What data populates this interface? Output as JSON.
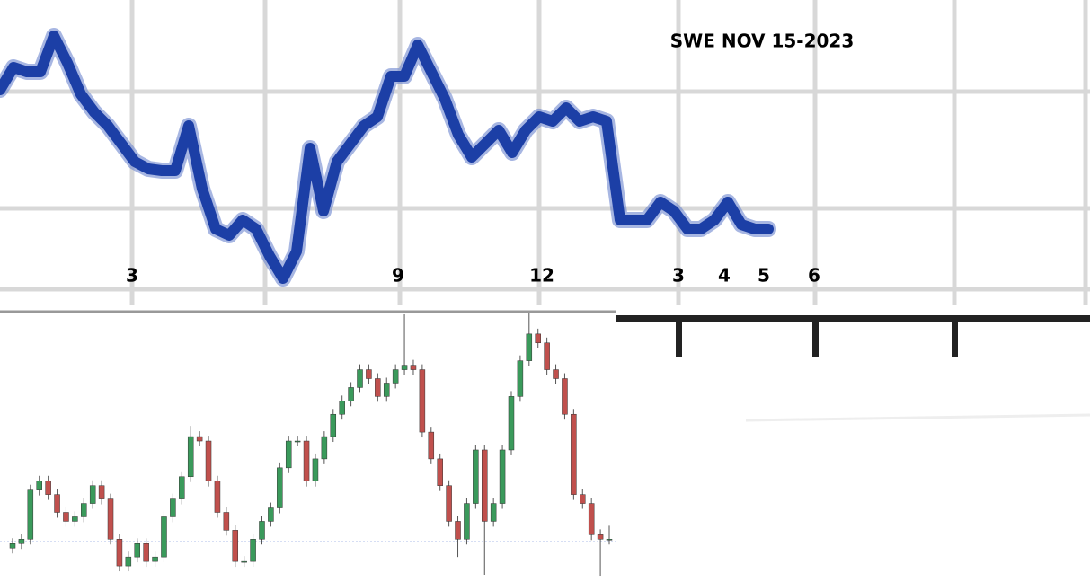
{
  "chart_data": [
    {
      "type": "line",
      "title": "SWE NOV 15-2023",
      "annotations": [
        "3",
        "9",
        "12",
        "3",
        "4",
        "5",
        "6"
      ],
      "color": "#1c3fa6",
      "values": [
        240,
        265,
        260,
        260,
        300,
        270,
        235,
        215,
        200,
        180,
        160,
        152,
        150,
        150,
        200,
        130,
        85,
        78,
        95,
        85,
        55,
        30,
        60,
        175,
        105,
        160,
        180,
        200,
        210,
        255,
        255,
        290,
        260,
        230,
        190,
        165,
        180,
        195,
        170,
        195,
        210,
        205,
        220,
        205,
        210,
        205,
        95,
        95,
        95,
        115,
        105,
        85,
        85,
        95,
        115,
        90,
        85,
        85
      ],
      "ylim": [
        0,
        340
      ]
    },
    {
      "type": "candlestick",
      "color_up": "#3a9a5b",
      "color_down": "#c0504d",
      "open": [
        35,
        40,
        45,
        100,
        110,
        95,
        75,
        65,
        70,
        85,
        105,
        90,
        45,
        15,
        25,
        40,
        20,
        25,
        70,
        90,
        115,
        160,
        155,
        110,
        75,
        55,
        20,
        20,
        45,
        65,
        80,
        125,
        155,
        155,
        110,
        135,
        160,
        185,
        200,
        215,
        235,
        225,
        205,
        220,
        235,
        240,
        235,
        165,
        135,
        105,
        65,
        45,
        85,
        145,
        65,
        85,
        145,
        205,
        245,
        275,
        265,
        235,
        225,
        185,
        95,
        85,
        50,
        45
      ],
      "high": [
        46,
        51,
        106,
        116,
        116,
        101,
        81,
        76,
        91,
        111,
        111,
        96,
        51,
        31,
        46,
        46,
        31,
        76,
        96,
        121,
        172,
        166,
        161,
        116,
        81,
        61,
        26,
        51,
        71,
        86,
        131,
        161,
        161,
        161,
        141,
        166,
        191,
        206,
        221,
        241,
        241,
        231,
        226,
        241,
        297,
        246,
        241,
        171,
        141,
        111,
        71,
        91,
        151,
        151,
        91,
        151,
        211,
        251,
        298,
        281,
        271,
        241,
        231,
        191,
        101,
        91,
        56,
        60
      ],
      "low": [
        29,
        34,
        39,
        94,
        89,
        69,
        59,
        59,
        64,
        79,
        84,
        39,
        9,
        9,
        19,
        14,
        14,
        19,
        64,
        84,
        109,
        149,
        104,
        69,
        49,
        14,
        14,
        14,
        39,
        59,
        74,
        119,
        149,
        104,
        104,
        129,
        154,
        179,
        194,
        209,
        219,
        199,
        199,
        214,
        229,
        229,
        159,
        129,
        99,
        59,
        25,
        39,
        79,
        5,
        59,
        79,
        139,
        199,
        239,
        259,
        229,
        219,
        179,
        89,
        79,
        44,
        4,
        39
      ],
      "close": [
        40,
        45,
        100,
        110,
        95,
        75,
        65,
        70,
        85,
        105,
        90,
        45,
        15,
        25,
        40,
        20,
        25,
        70,
        90,
        115,
        160,
        155,
        110,
        75,
        55,
        20,
        20,
        45,
        65,
        80,
        125,
        155,
        155,
        110,
        135,
        160,
        185,
        200,
        215,
        235,
        225,
        205,
        220,
        235,
        240,
        235,
        165,
        135,
        105,
        65,
        45,
        85,
        145,
        65,
        85,
        145,
        205,
        245,
        275,
        265,
        235,
        225,
        185,
        95,
        85,
        50,
        45,
        45
      ],
      "reference_line": 42,
      "ylim": [
        0,
        300
      ]
    }
  ]
}
